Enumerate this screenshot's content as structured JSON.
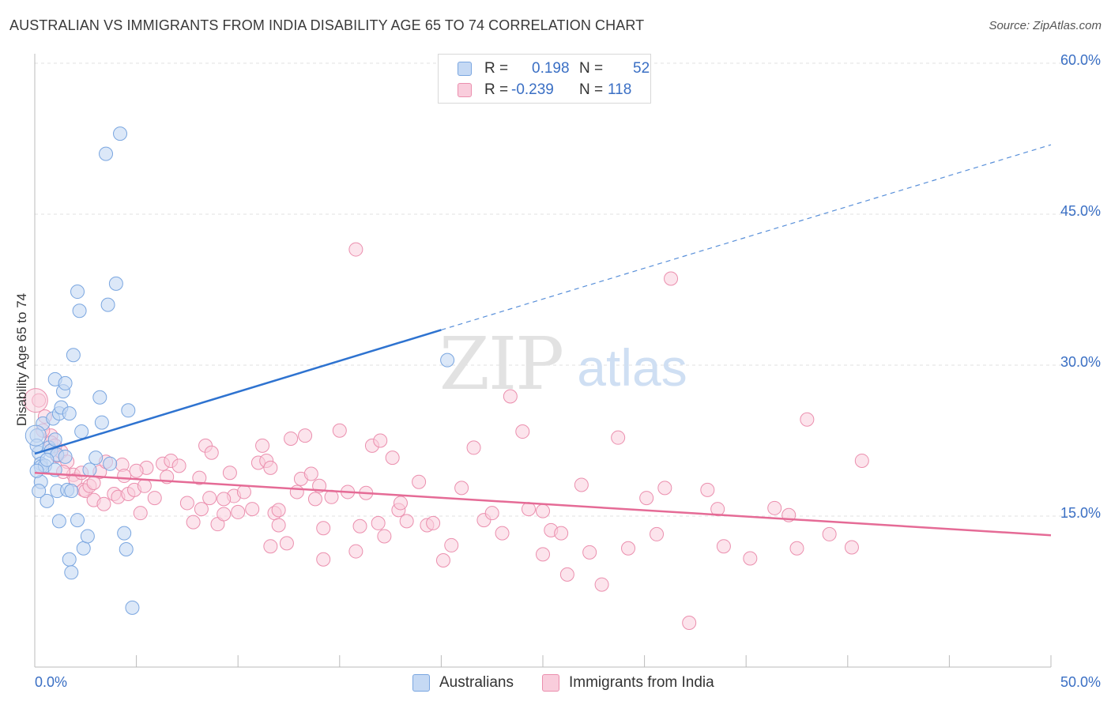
{
  "header": {
    "title": "AUSTRALIAN VS IMMIGRANTS FROM INDIA DISABILITY AGE 65 TO 74 CORRELATION CHART",
    "source": "Source: ZipAtlas.com"
  },
  "watermark": {
    "zip": "ZIP",
    "atlas": "atlas"
  },
  "legend": {
    "r_label": "R =",
    "n_label": "N =",
    "rows": [
      {
        "r": "0.198",
        "n": "52"
      },
      {
        "r": "-0.239",
        "n": "118"
      }
    ]
  },
  "colors": {
    "blue_fill": "#c5d9f4",
    "blue_stroke": "#7aa6e0",
    "blue_line": "#2e73d0",
    "pink_fill": "#f9cddc",
    "pink_stroke": "#eb8fae",
    "pink_line": "#e56b96",
    "tick_label": "#3a6fc4",
    "grid": "#e0e0e0"
  },
  "chart_data": {
    "type": "scatter",
    "title": "AUSTRALIAN VS IMMIGRANTS FROM INDIA DISABILITY AGE 65 TO 74 CORRELATION CHART",
    "xlabel": "",
    "ylabel": "Disability Age 65 to 74",
    "xlim": [
      0,
      50
    ],
    "ylim": [
      0,
      60
    ],
    "x_tick_labels": {
      "min": "0.0%",
      "max": "50.0%"
    },
    "y_ticks": [
      {
        "value": 15,
        "label": "15.0%"
      },
      {
        "value": 30,
        "label": "30.0%"
      },
      {
        "value": 45,
        "label": "45.0%"
      },
      {
        "value": 60,
        "label": "60.0%"
      }
    ],
    "series": [
      {
        "name": "Australians",
        "r": 0.198,
        "n": 52,
        "trend": {
          "x0": 0,
          "y0": 21.2,
          "x1": 20,
          "y1": 33.5,
          "dash_to_x": 50,
          "dash_to_y": 51.9
        },
        "points": [
          [
            0.1,
            23.0
          ],
          [
            0.2,
            21.3
          ],
          [
            0.3,
            20.2
          ],
          [
            0.3,
            19.9
          ],
          [
            0.4,
            24.2
          ],
          [
            0.5,
            20.0
          ],
          [
            0.6,
            16.5
          ],
          [
            0.7,
            21.8
          ],
          [
            0.8,
            21.5
          ],
          [
            0.9,
            24.7
          ],
          [
            1.0,
            28.6
          ],
          [
            1.0,
            22.6
          ],
          [
            1.1,
            21.1
          ],
          [
            1.1,
            17.5
          ],
          [
            1.2,
            14.5
          ],
          [
            1.2,
            25.2
          ],
          [
            1.3,
            25.8
          ],
          [
            1.4,
            27.4
          ],
          [
            1.5,
            20.9
          ],
          [
            1.5,
            28.2
          ],
          [
            1.6,
            17.6
          ],
          [
            1.7,
            25.2
          ],
          [
            1.7,
            10.7
          ],
          [
            1.8,
            17.5
          ],
          [
            1.8,
            9.4
          ],
          [
            1.9,
            31.0
          ],
          [
            2.1,
            14.6
          ],
          [
            2.1,
            37.3
          ],
          [
            2.2,
            35.4
          ],
          [
            2.3,
            23.4
          ],
          [
            2.4,
            11.8
          ],
          [
            2.6,
            13.0
          ],
          [
            2.7,
            19.6
          ],
          [
            3.0,
            20.8
          ],
          [
            3.2,
            26.8
          ],
          [
            3.3,
            24.3
          ],
          [
            3.5,
            51.0
          ],
          [
            3.6,
            36.0
          ],
          [
            3.7,
            20.2
          ],
          [
            4.0,
            38.1
          ],
          [
            4.2,
            53.0
          ],
          [
            4.4,
            13.3
          ],
          [
            4.5,
            11.7
          ],
          [
            4.6,
            25.5
          ],
          [
            4.8,
            5.9
          ],
          [
            0.3,
            18.4
          ],
          [
            0.2,
            17.5
          ],
          [
            0.1,
            19.5
          ],
          [
            1.0,
            19.6
          ],
          [
            20.3,
            30.5
          ],
          [
            0.1,
            22.0
          ],
          [
            0.6,
            20.6
          ]
        ]
      },
      {
        "name": "Immigrants from India",
        "r": -0.239,
        "n": 118,
        "trend": {
          "x0": 0,
          "y0": 19.3,
          "x1": 50,
          "y1": 13.1
        },
        "points": [
          [
            0.2,
            26.5
          ],
          [
            0.5,
            24.9
          ],
          [
            0.8,
            23.0
          ],
          [
            0.8,
            22.3
          ],
          [
            1.1,
            21.0
          ],
          [
            1.3,
            21.4
          ],
          [
            1.6,
            20.4
          ],
          [
            1.9,
            19.1
          ],
          [
            2.0,
            18.6
          ],
          [
            2.3,
            19.3
          ],
          [
            2.4,
            17.6
          ],
          [
            2.5,
            17.5
          ],
          [
            2.7,
            18.0
          ],
          [
            2.9,
            16.6
          ],
          [
            3.2,
            19.4
          ],
          [
            3.4,
            16.2
          ],
          [
            3.5,
            20.4
          ],
          [
            3.9,
            17.2
          ],
          [
            4.1,
            16.9
          ],
          [
            4.3,
            20.1
          ],
          [
            4.4,
            19.0
          ],
          [
            4.6,
            17.2
          ],
          [
            4.9,
            17.6
          ],
          [
            5.2,
            15.3
          ],
          [
            5.4,
            18.0
          ],
          [
            5.5,
            19.8
          ],
          [
            5.9,
            16.8
          ],
          [
            6.3,
            20.2
          ],
          [
            6.5,
            18.9
          ],
          [
            6.7,
            20.5
          ],
          [
            7.1,
            20.0
          ],
          [
            7.5,
            16.3
          ],
          [
            7.8,
            14.4
          ],
          [
            8.1,
            18.8
          ],
          [
            8.2,
            15.7
          ],
          [
            8.4,
            22.0
          ],
          [
            8.6,
            16.8
          ],
          [
            9.0,
            14.2
          ],
          [
            9.3,
            15.2
          ],
          [
            9.6,
            19.3
          ],
          [
            9.8,
            17.0
          ],
          [
            10.0,
            15.4
          ],
          [
            10.3,
            17.4
          ],
          [
            10.7,
            15.7
          ],
          [
            11.0,
            20.3
          ],
          [
            11.2,
            22.0
          ],
          [
            11.4,
            20.5
          ],
          [
            11.6,
            19.8
          ],
          [
            11.8,
            15.3
          ],
          [
            12.0,
            14.1
          ],
          [
            12.4,
            12.3
          ],
          [
            12.6,
            22.7
          ],
          [
            12.9,
            17.4
          ],
          [
            13.1,
            18.7
          ],
          [
            13.3,
            23.0
          ],
          [
            13.6,
            19.2
          ],
          [
            13.8,
            16.7
          ],
          [
            14.0,
            18.0
          ],
          [
            14.2,
            13.8
          ],
          [
            14.6,
            16.9
          ],
          [
            15.0,
            23.5
          ],
          [
            15.4,
            17.4
          ],
          [
            15.8,
            11.5
          ],
          [
            16.0,
            14.0
          ],
          [
            16.3,
            17.3
          ],
          [
            16.6,
            22.0
          ],
          [
            16.9,
            14.3
          ],
          [
            17.2,
            13.0
          ],
          [
            17.6,
            20.8
          ],
          [
            17.9,
            15.6
          ],
          [
            18.0,
            16.3
          ],
          [
            18.3,
            14.5
          ],
          [
            18.9,
            18.4
          ],
          [
            19.3,
            14.1
          ],
          [
            19.6,
            14.3
          ],
          [
            20.1,
            10.6
          ],
          [
            20.5,
            12.1
          ],
          [
            21.0,
            17.8
          ],
          [
            21.6,
            21.8
          ],
          [
            22.1,
            14.6
          ],
          [
            22.5,
            15.3
          ],
          [
            23.0,
            13.3
          ],
          [
            23.4,
            26.9
          ],
          [
            24.0,
            23.4
          ],
          [
            24.3,
            15.7
          ],
          [
            25.0,
            11.2
          ],
          [
            25.4,
            13.6
          ],
          [
            25.9,
            13.3
          ],
          [
            26.2,
            9.2
          ],
          [
            26.9,
            18.1
          ],
          [
            27.3,
            11.4
          ],
          [
            27.9,
            8.2
          ],
          [
            28.7,
            22.8
          ],
          [
            29.2,
            11.8
          ],
          [
            30.1,
            16.8
          ],
          [
            30.6,
            13.2
          ],
          [
            31.0,
            17.8
          ],
          [
            31.3,
            38.6
          ],
          [
            32.2,
            4.4
          ],
          [
            33.1,
            17.6
          ],
          [
            33.6,
            15.7
          ],
          [
            33.9,
            12.0
          ],
          [
            35.2,
            10.8
          ],
          [
            36.4,
            15.8
          ],
          [
            37.1,
            15.1
          ],
          [
            37.5,
            11.8
          ],
          [
            38.0,
            24.6
          ],
          [
            39.1,
            13.2
          ],
          [
            40.2,
            11.9
          ],
          [
            40.7,
            20.5
          ],
          [
            0.4,
            23.5
          ],
          [
            1.0,
            22.0
          ],
          [
            1.4,
            19.4
          ],
          [
            2.9,
            18.3
          ],
          [
            5.0,
            19.5
          ],
          [
            8.7,
            21.3
          ],
          [
            9.3,
            16.7
          ],
          [
            14.2,
            10.7
          ]
        ]
      }
    ],
    "extra_pink_points": [
      [
        15.8,
        41.5
      ],
      [
        11.6,
        12.0
      ],
      [
        25.0,
        15.5
      ],
      [
        17.0,
        22.5
      ],
      [
        12.0,
        15.6
      ]
    ]
  },
  "bottom_legend": {
    "items": [
      {
        "label": "Australians"
      },
      {
        "label": "Immigrants from India"
      }
    ]
  }
}
